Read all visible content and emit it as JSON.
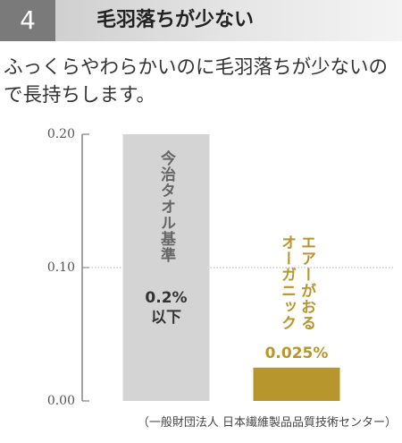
{
  "header": {
    "number": "4",
    "title": "毛羽落ちが少ない"
  },
  "description": "ふっくらやわらかいのに毛羽落ちが少ないので長持ちします。",
  "chart_data": {
    "type": "bar",
    "categories": [
      "今治タオル基準",
      "エアーがおる\nオーガニック"
    ],
    "values": [
      0.2,
      0.025
    ],
    "value_labels": [
      "0.2%\n以下",
      "0.025%"
    ],
    "colors": [
      "#d4d4d4",
      "#b8962e"
    ],
    "ylim": [
      0,
      0.2
    ],
    "yticks": [
      {
        "value": 0,
        "label": "0.00"
      },
      {
        "value": 0.1,
        "label": "0.10"
      },
      {
        "value": 0.2,
        "label": "0.20"
      }
    ],
    "grid": true,
    "source": "（一般財団法人 日本繊維製品品質技術センター）"
  }
}
